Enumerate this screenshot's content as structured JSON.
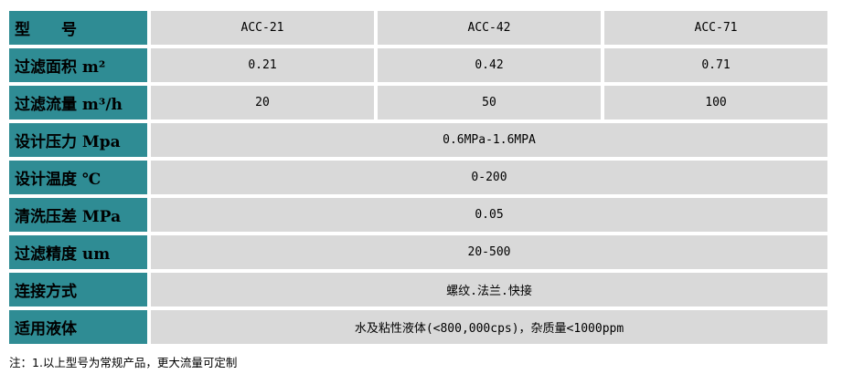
{
  "table": {
    "rows": [
      {
        "label": "型　　号",
        "cells": [
          "ACC-21",
          "ACC-42",
          "ACC-71"
        ]
      },
      {
        "label": "过滤面积 m²",
        "cells": [
          "0.21",
          "0.42",
          "0.71"
        ]
      },
      {
        "label": "过滤流量 m³/h",
        "cells": [
          "20",
          "50",
          "100"
        ]
      },
      {
        "label": "设计压力 Mpa",
        "value": "0.6MPa-1.6MPA"
      },
      {
        "label": "设计温度 ℃",
        "value": "0-200"
      },
      {
        "label": "清洗压差 MPa",
        "value": "0.05"
      },
      {
        "label": "过滤精度 um",
        "value": "20-500"
      },
      {
        "label": "连接方式",
        "value": "螺纹.法兰.快接"
      },
      {
        "label": "适用液体",
        "value": "水及粘性液体(<800,000cps)，杂质量<1000ppm"
      }
    ]
  },
  "note": "注：1.以上型号为常规产品，更大流量可定制",
  "colors": {
    "header_bg": "#2f8c94",
    "cell_bg": "#d9d9d9"
  }
}
